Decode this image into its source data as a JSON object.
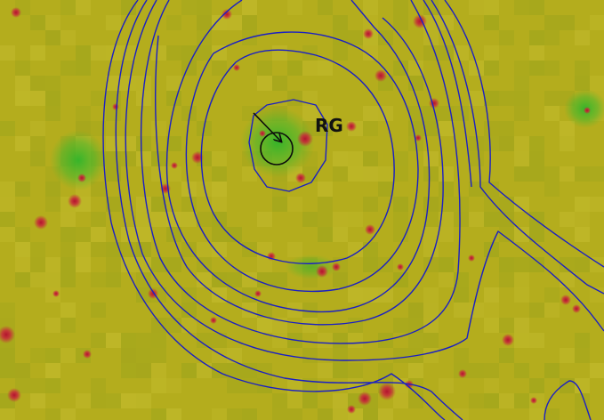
{
  "image": {
    "label": "RG",
    "colors": {
      "background": "#b4ad1d",
      "background_light": "#c2ba2c",
      "background_dark": "#9fa51c",
      "green_patch": "#4cb62c",
      "contour": "#1a1fc4",
      "source": "#c8263a",
      "marker": "#0b0b0b"
    }
  }
}
